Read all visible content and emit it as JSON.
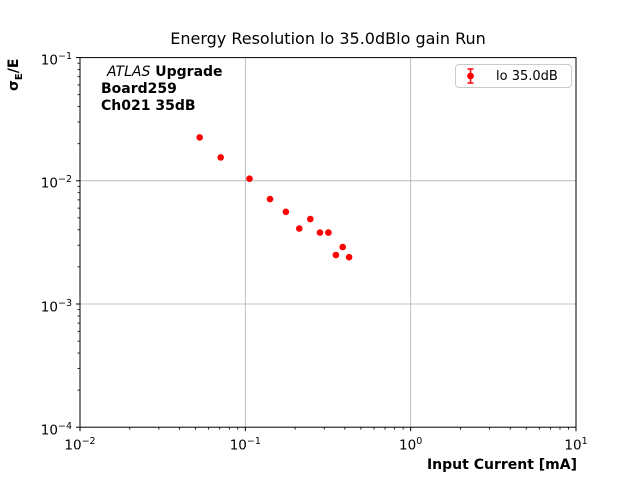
{
  "chart_data": {
    "type": "scatter",
    "title": "Energy Resolution lo 35.0dBlo gain Run",
    "xlabel": "Input Current [mA]",
    "ylabel": "σE/E",
    "ylabel_parts": {
      "base": "σ",
      "sub": "E",
      "rest": "/E"
    },
    "xscale": "log",
    "yscale": "log",
    "xlim": [
      0.01,
      10
    ],
    "ylim": [
      0.0001,
      0.1
    ],
    "x_tick_exponents": [
      -2,
      -1,
      0,
      1
    ],
    "y_tick_exponents": [
      -1,
      -2,
      -3,
      -4
    ],
    "grid": true,
    "grid_color": "#b0b0b0",
    "axis_color": "#000000",
    "legend": {
      "position": "upper right",
      "label": "lo 35.0dB"
    },
    "series": [
      {
        "name": "lo 35.0dB",
        "color": "#ff0000",
        "marker": "circle",
        "errorbars": true,
        "x": [
          0.053,
          0.071,
          0.106,
          0.141,
          0.176,
          0.212,
          0.247,
          0.283,
          0.318,
          0.353,
          0.388,
          0.424
        ],
        "y": [
          0.0225,
          0.0155,
          0.0104,
          0.0071,
          0.0056,
          0.0041,
          0.0049,
          0.0038,
          0.0038,
          0.0025,
          0.0029,
          0.0024
        ]
      }
    ],
    "annotation": {
      "line1_italic": "ATLAS",
      "line1_bold": "Upgrade",
      "line2": "Board259",
      "line3": "Ch021 35dB"
    }
  }
}
